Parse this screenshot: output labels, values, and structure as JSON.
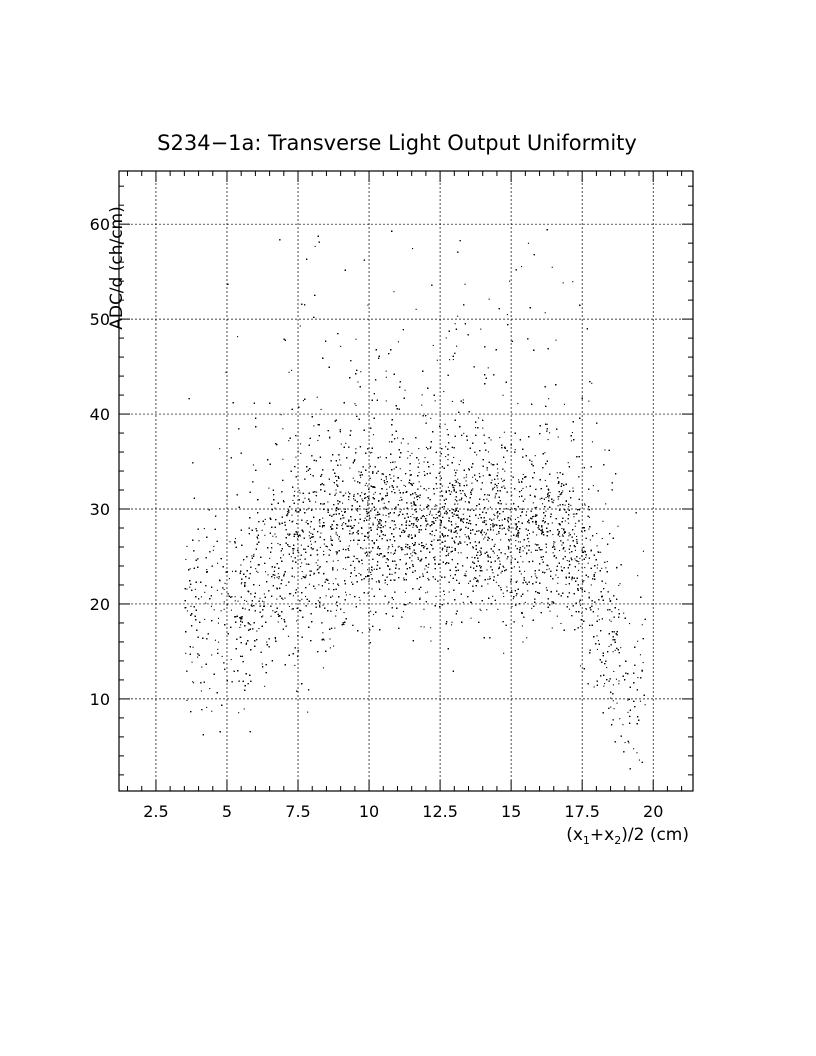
{
  "chart_data": {
    "type": "scatter",
    "title": "S234−1a: Transverse Light Output Uniformity",
    "xlabel": "(x₁+x₂)/2 (cm)",
    "xlabel_parts": {
      "pre": "(x",
      "sub1": "1",
      "mid": "+x",
      "sub2": "2",
      "post": ")/2 (cm)"
    },
    "ylabel": "ADC/d (ch/cm)",
    "xlim": [
      1.2,
      21.4
    ],
    "ylim": [
      0.3,
      65.6
    ],
    "xticks": [
      2.5,
      5,
      7.5,
      10,
      12.5,
      15,
      17.5,
      20
    ],
    "xtick_labels": [
      "2.5",
      "5",
      "7.5",
      "10",
      "12.5",
      "15",
      "17.5",
      "20"
    ],
    "yticks": [
      10,
      20,
      30,
      40,
      50,
      60
    ],
    "ytick_labels": [
      "10",
      "20",
      "30",
      "40",
      "50",
      "60"
    ],
    "grid": true,
    "marker_color": "#000000",
    "density_profile": [
      {
        "x": 4.5,
        "center_y": 18,
        "spread": 5,
        "weight": 0.3
      },
      {
        "x": 6.0,
        "center_y": 21,
        "spread": 5,
        "weight": 0.6
      },
      {
        "x": 7.5,
        "center_y": 25,
        "spread": 5,
        "weight": 0.9
      },
      {
        "x": 10.0,
        "center_y": 27.5,
        "spread": 4.5,
        "weight": 1.0
      },
      {
        "x": 12.5,
        "center_y": 28,
        "spread": 4.5,
        "weight": 1.0
      },
      {
        "x": 15.0,
        "center_y": 27.5,
        "spread": 4.5,
        "weight": 1.0
      },
      {
        "x": 17.0,
        "center_y": 27,
        "spread": 4.5,
        "weight": 0.95
      },
      {
        "x": 18.0,
        "center_y": 21,
        "spread": 6,
        "weight": 0.6
      },
      {
        "x": 19.0,
        "center_y": 11,
        "spread": 5,
        "weight": 0.35
      }
    ]
  }
}
